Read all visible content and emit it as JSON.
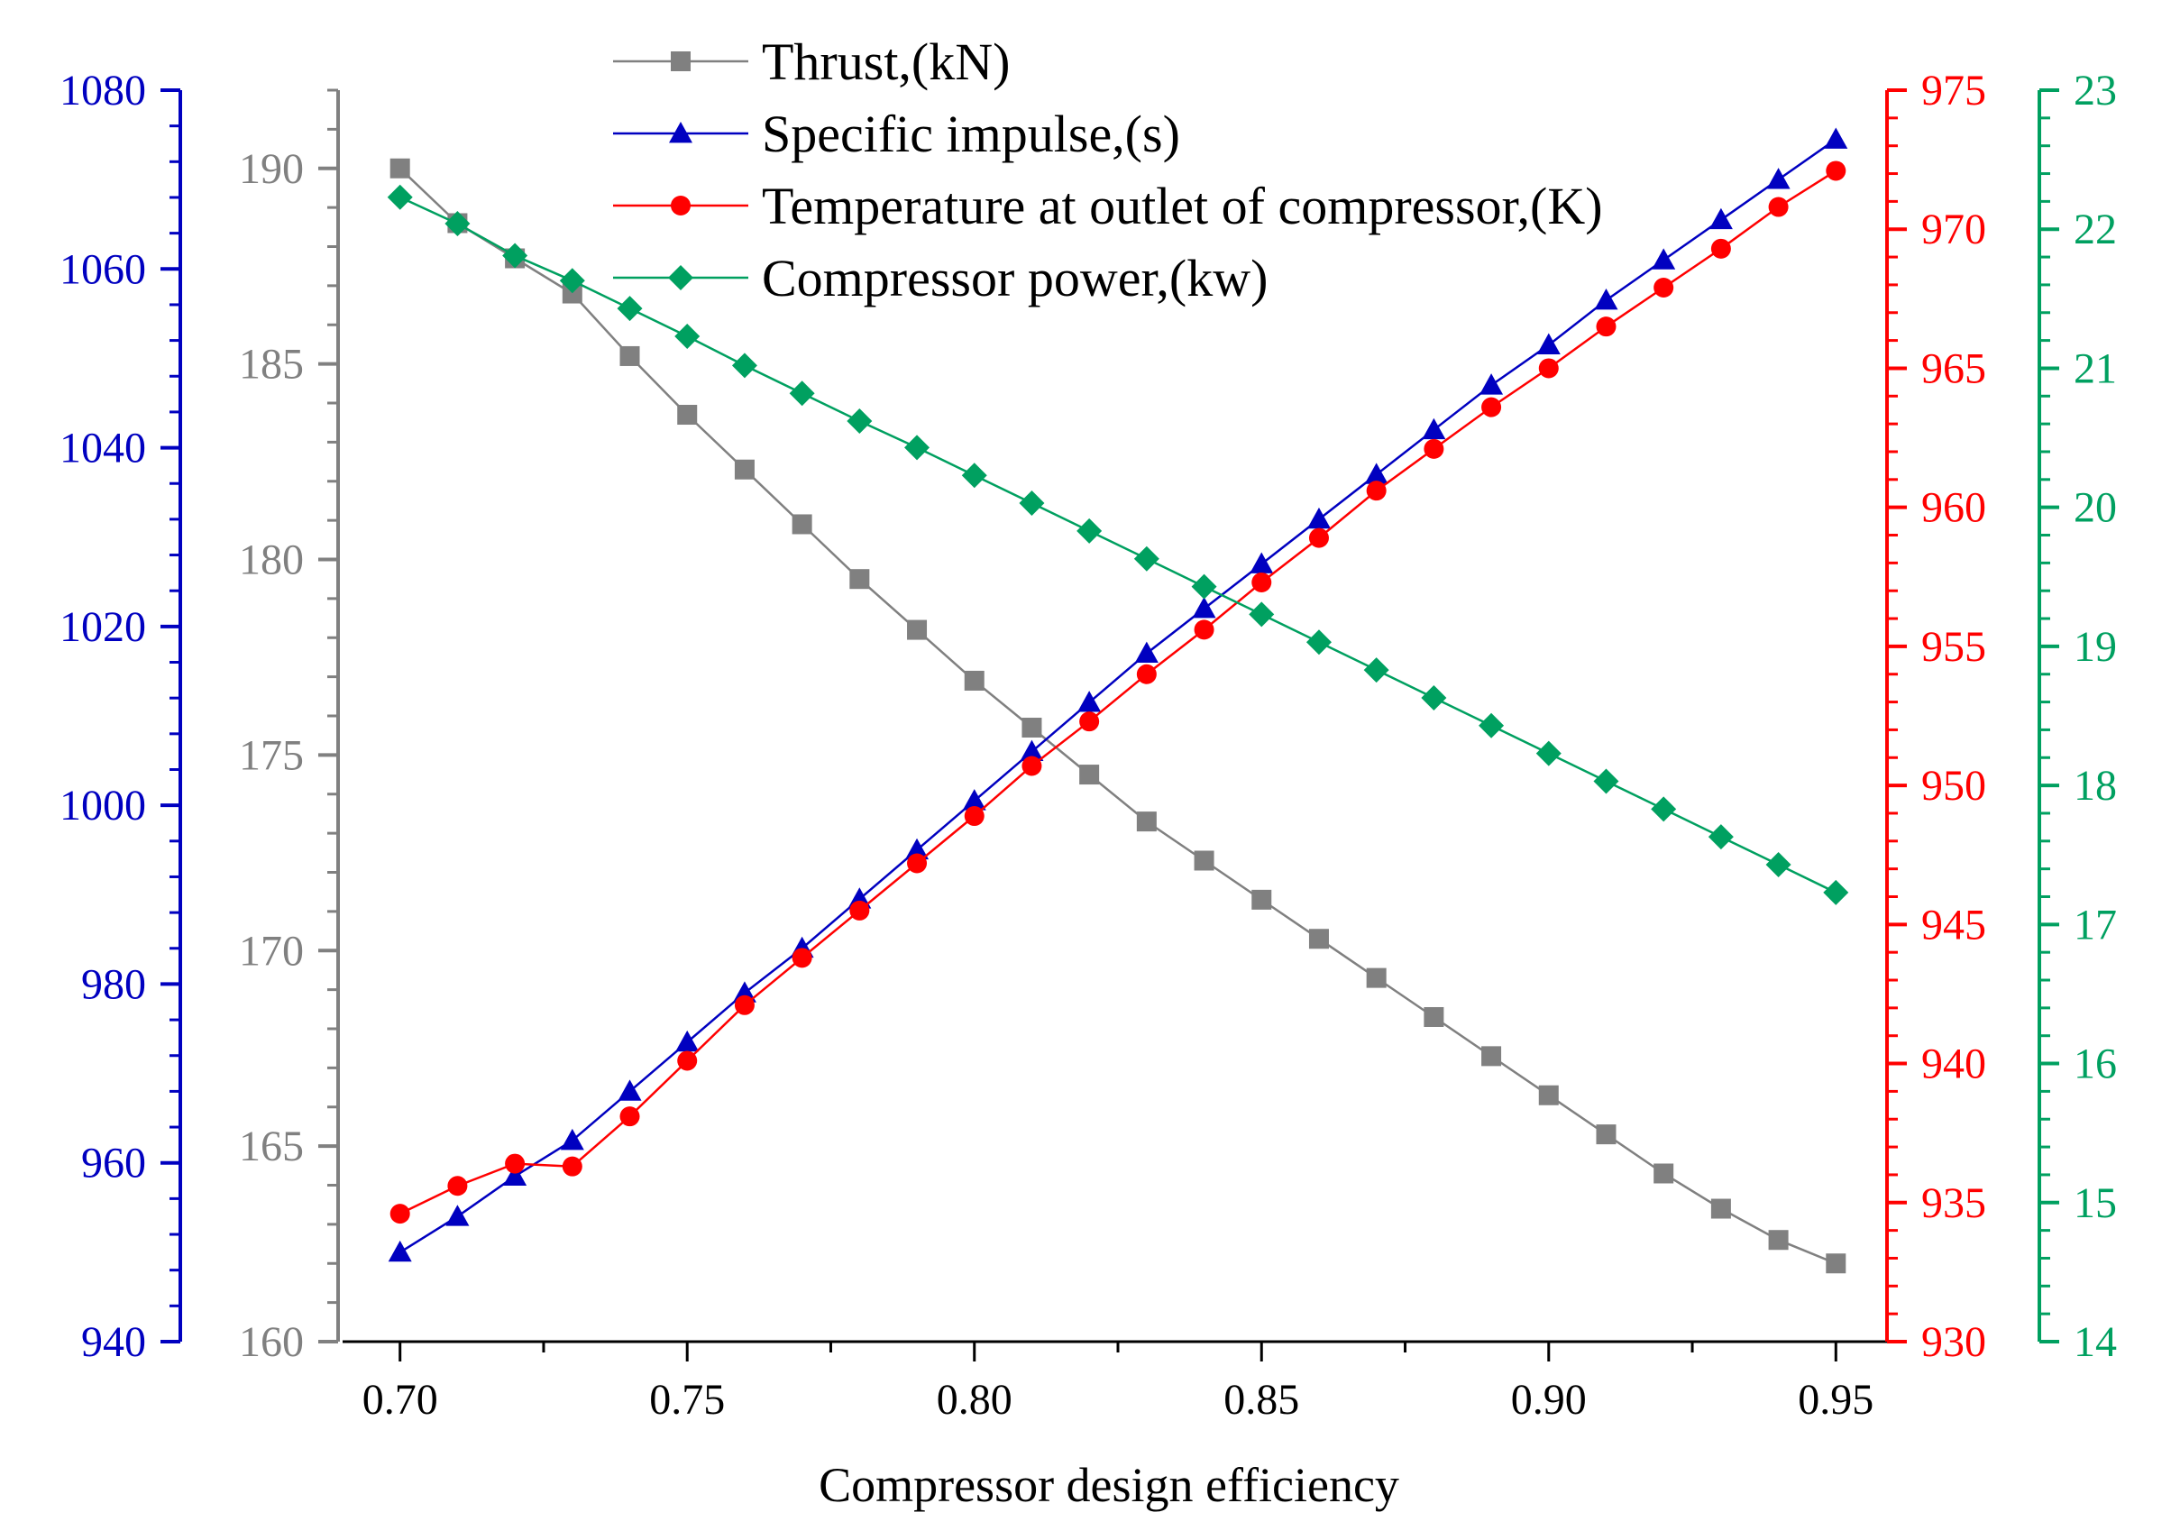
{
  "chart_data": {
    "type": "line",
    "xlabel": "Compressor design efficiency",
    "x": [
      0.7,
      0.71,
      0.72,
      0.73,
      0.74,
      0.75,
      0.76,
      0.77,
      0.78,
      0.79,
      0.8,
      0.81,
      0.82,
      0.83,
      0.84,
      0.85,
      0.86,
      0.87,
      0.88,
      0.89,
      0.9,
      0.91,
      0.92,
      0.93,
      0.94,
      0.95
    ],
    "xlim": [
      0.69,
      0.96
    ],
    "xticks": [
      "0.70",
      "0.75",
      "0.80",
      "0.85",
      "0.90",
      "0.95"
    ],
    "axes": {
      "thrust": {
        "range": [
          160,
          192
        ],
        "ticks": [
          "160",
          "165",
          "170",
          "175",
          "180",
          "185",
          "190"
        ],
        "color": "#808080"
      },
      "isp": {
        "range": [
          940,
          1080
        ],
        "ticks": [
          "940",
          "960",
          "980",
          "1000",
          "1020",
          "1040",
          "1060",
          "1080"
        ],
        "color": "#0000c0"
      },
      "temperature": {
        "range": [
          930,
          975
        ],
        "ticks": [
          "930",
          "935",
          "940",
          "945",
          "950",
          "955",
          "960",
          "965",
          "970",
          "975"
        ],
        "color": "#ff0000"
      },
      "power": {
        "range": [
          14,
          23
        ],
        "ticks": [
          "14",
          "15",
          "16",
          "17",
          "18",
          "19",
          "20",
          "21",
          "22",
          "23"
        ],
        "color": "#00a060"
      }
    },
    "series": [
      {
        "name": "Thrust,(kN)",
        "axis": "thrust",
        "marker": "square",
        "color": "#808080",
        "values": [
          190.0,
          188.6,
          187.7,
          186.8,
          185.2,
          183.7,
          182.3,
          180.9,
          179.5,
          178.2,
          176.9,
          175.7,
          174.5,
          173.3,
          172.3,
          171.3,
          170.3,
          169.3,
          168.3,
          167.3,
          166.3,
          165.3,
          164.3,
          163.4,
          162.6,
          162.0
        ]
      },
      {
        "name": "Specific impulse,(s)",
        "axis": "isp",
        "marker": "triangle",
        "color": "#0000c0",
        "values": [
          950.0,
          954.0,
          958.5,
          962.5,
          968.0,
          973.5,
          979.0,
          984.0,
          989.5,
          995.0,
          1000.5,
          1006.0,
          1011.5,
          1017.0,
          1022.0,
          1027.0,
          1032.0,
          1037.0,
          1042.0,
          1047.0,
          1051.5,
          1056.5,
          1061.0,
          1065.5,
          1070.0,
          1074.5
        ]
      },
      {
        "name": "Temperature at outlet of compressor,(K)",
        "axis": "temperature",
        "marker": "circle",
        "color": "#ff0000",
        "values": [
          934.6,
          935.6,
          936.4,
          936.3,
          938.1,
          940.1,
          942.1,
          943.8,
          945.5,
          947.2,
          948.9,
          950.7,
          952.3,
          954.0,
          955.6,
          957.3,
          958.9,
          960.6,
          962.1,
          963.6,
          965.0,
          966.5,
          967.9,
          969.3,
          970.8,
          972.1
        ]
      },
      {
        "name": "Compressor power,(kw)",
        "axis": "power",
        "marker": "diamond",
        "color": "#00a060",
        "values": [
          22.23,
          22.04,
          21.81,
          21.63,
          21.43,
          21.23,
          21.02,
          20.82,
          20.62,
          20.43,
          20.23,
          20.03,
          19.83,
          19.63,
          19.43,
          19.23,
          19.03,
          18.83,
          18.63,
          18.43,
          18.23,
          18.03,
          17.83,
          17.63,
          17.43,
          17.23
        ]
      }
    ],
    "legend": {
      "placement": "top-center"
    }
  }
}
